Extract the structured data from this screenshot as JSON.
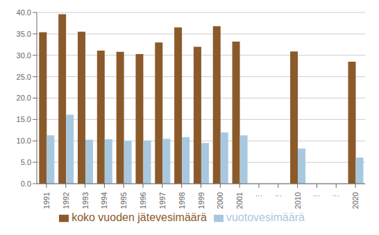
{
  "chart_data": {
    "type": "bar",
    "categories": [
      "1991",
      "1992",
      "1993",
      "1994",
      "1995",
      "1996",
      "1997",
      "1998",
      "1999",
      "2000",
      "2001",
      "⋮",
      "⋮",
      "2010",
      "⋮",
      "⋮",
      "2020"
    ],
    "series": [
      {
        "name": "koko vuoden jätevesimäärä",
        "color": "#8B5A2B",
        "values": [
          35.4,
          39.6,
          35.5,
          31.1,
          30.8,
          30.3,
          33.0,
          36.5,
          32.0,
          36.8,
          33.2,
          null,
          null,
          30.9,
          null,
          null,
          28.5
        ]
      },
      {
        "name": "vuotovesimäärä",
        "color": "#A8C8E0",
        "values": [
          11.3,
          16.1,
          10.3,
          10.4,
          10.0,
          10.1,
          10.5,
          10.9,
          9.5,
          12.0,
          11.3,
          null,
          null,
          8.2,
          null,
          null,
          6.1
        ]
      }
    ],
    "ylim": [
      0,
      40
    ],
    "yticks": [
      {
        "value": 0,
        "label": "0.0"
      },
      {
        "value": 5,
        "label": "5.0"
      },
      {
        "value": 10,
        "label": "10.0"
      },
      {
        "value": 15,
        "label": "15.0"
      },
      {
        "value": 20,
        "label": "20.0"
      },
      {
        "value": 25,
        "label": "25.0"
      },
      {
        "value": 30,
        "label": "30.0"
      },
      {
        "value": 35,
        "label": "35.0"
      },
      {
        "value": 40,
        "label": "40.0"
      }
    ],
    "grid": true,
    "legend": "bottom"
  }
}
